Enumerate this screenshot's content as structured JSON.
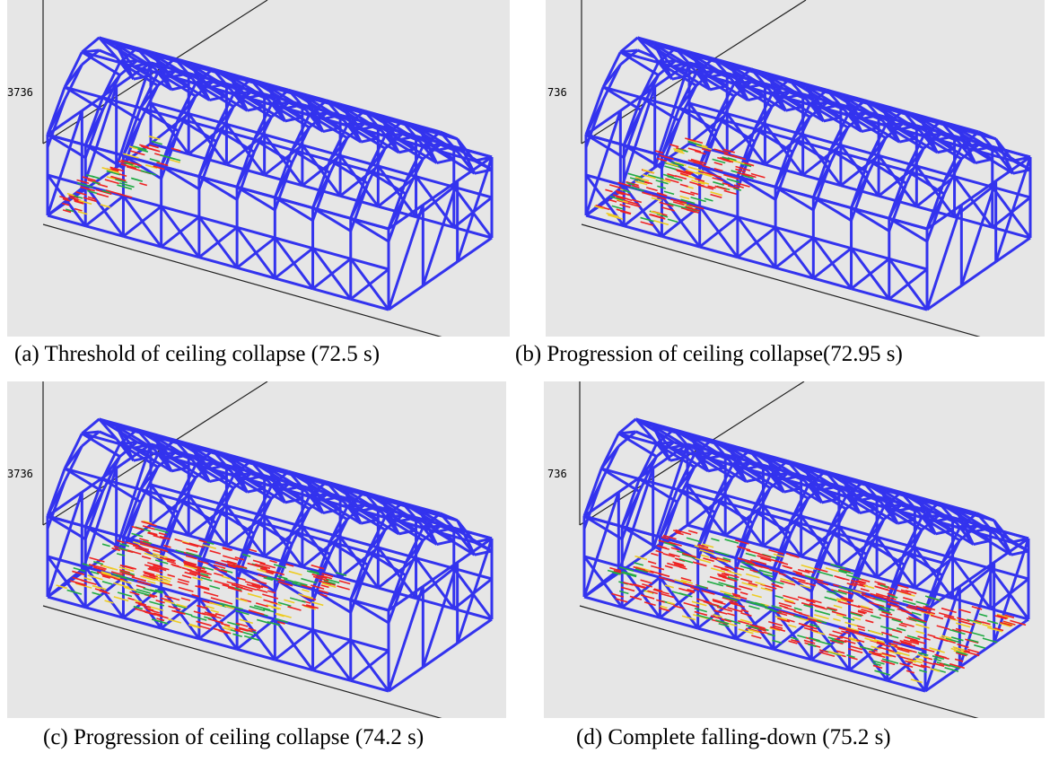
{
  "figure": {
    "panels": [
      {
        "caption": "(a)  Threshold of ceiling collapse (72.5 s)",
        "frame_label": "3736",
        "collapse_extent": 0.08,
        "time_s": 72.5
      },
      {
        "caption": "(b) Progression of ceiling collapse(72.95 s)",
        "frame_label": "736",
        "collapse_extent": 0.25,
        "time_s": 72.95
      },
      {
        "caption": "(c) Progression of ceiling collapse (74.2 s)",
        "frame_label": "3736",
        "collapse_extent": 0.6,
        "time_s": 74.2
      },
      {
        "caption": "(d) Complete falling-down (75.2 s)",
        "frame_label": "736",
        "collapse_extent": 1.0,
        "time_s": 75.2
      }
    ]
  },
  "colors": {
    "background": "#e6e6e6",
    "structure": "#3333ee",
    "axis": "#222222",
    "collapsed_primary": "#ee2222",
    "collapsed_secondary": "#22aa44",
    "collapsed_tertiary": "#eecc22"
  }
}
